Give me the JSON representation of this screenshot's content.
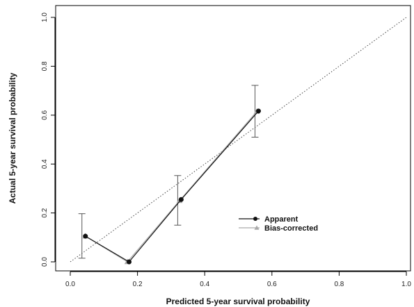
{
  "chart_data": {
    "type": "line",
    "xlabel": "Predicted 5-year survival probability",
    "ylabel": "Actual 5-year survival probability",
    "xlim": [
      0,
      1
    ],
    "ylim": [
      0,
      1
    ],
    "x_ticks": [
      0.0,
      0.2,
      0.4,
      0.6,
      0.8,
      1.0
    ],
    "y_ticks": [
      0.0,
      0.2,
      0.4,
      0.6,
      0.8,
      1.0
    ],
    "x_tick_labels": [
      "0.0",
      "0.2",
      "0.4",
      "0.6",
      "0.8",
      "1.0"
    ],
    "y_tick_labels": [
      "0.0",
      "0.2",
      "0.4",
      "0.6",
      "0.8",
      "1.0"
    ],
    "grid": false,
    "legend_position": "lower-right",
    "reference_line": {
      "x": [
        0,
        1
      ],
      "y": [
        0,
        1
      ],
      "style": "dotted"
    },
    "series": [
      {
        "name": "Apparent",
        "color": "#111111",
        "marker": "circle",
        "x": [
          0.045,
          0.175,
          0.33,
          0.56
        ],
        "y": [
          0.105,
          0.0,
          0.255,
          0.617
        ],
        "error_lower": [
          0.015,
          null,
          0.15,
          0.51
        ],
        "error_upper": [
          0.197,
          null,
          0.353,
          0.722
        ]
      },
      {
        "name": "Bias-corrected",
        "color": "#aaaaaa",
        "marker": "triangle",
        "x": [
          0.045,
          0.17,
          0.325,
          0.555
        ],
        "y": [
          0.105,
          0.0,
          0.25,
          0.615
        ]
      }
    ]
  }
}
